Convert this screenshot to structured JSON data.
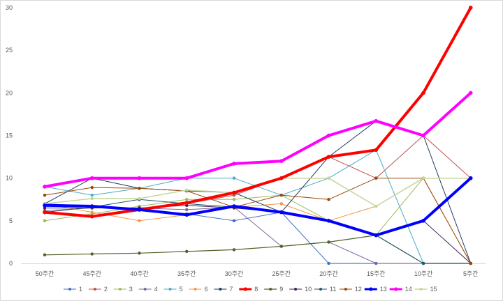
{
  "chart_data": {
    "type": "line",
    "title": "",
    "xlabel": "",
    "ylabel": "",
    "ylim": [
      0,
      30
    ],
    "yticks": [
      0,
      5,
      10,
      15,
      20,
      25,
      30
    ],
    "grid": false,
    "legend": "bottom",
    "categories": [
      "50주간",
      "45주간",
      "40주간",
      "35주간",
      "30주간",
      "25주간",
      "20주간",
      "15주간",
      "10주간",
      "5주간"
    ],
    "series": [
      {
        "name": "1",
        "color": "#4472c4",
        "width": 1,
        "values": [
          7,
          6.7,
          6.3,
          5.8,
          5,
          6,
          0,
          0,
          0,
          0
        ]
      },
      {
        "name": "2",
        "color": "#c0504d",
        "width": 1,
        "values": [
          6,
          5.5,
          6.3,
          7,
          8,
          10,
          12.5,
          10,
          15,
          10
        ]
      },
      {
        "name": "3",
        "color": "#9bbb59",
        "width": 1,
        "values": [
          5,
          5.8,
          6.7,
          7.5,
          7.5,
          8,
          5,
          3.3,
          10,
          10
        ]
      },
      {
        "name": "4",
        "color": "#8064a2",
        "width": 1,
        "values": [
          6.2,
          6.5,
          6.5,
          6.3,
          6.6,
          2,
          2.5,
          0,
          0,
          0
        ]
      },
      {
        "name": "5",
        "color": "#4bacc6",
        "width": 1,
        "values": [
          9,
          8,
          8.8,
          10,
          10,
          8,
          10,
          13.3,
          0,
          0
        ]
      },
      {
        "name": "6",
        "color": "#f79646",
        "width": 1,
        "values": [
          7,
          6,
          5,
          5.7,
          6.6,
          7,
          5,
          6.7,
          10,
          0
        ]
      },
      {
        "name": "7",
        "color": "#1f3864",
        "width": 1,
        "values": [
          7,
          10,
          8.8,
          8.5,
          8.3,
          6,
          12.5,
          16.7,
          15,
          0
        ]
      },
      {
        "name": "8",
        "color": "#ff0000",
        "width": 4,
        "values": [
          6,
          5.5,
          6.3,
          7.1,
          8.3,
          10,
          12.5,
          13.3,
          20,
          30
        ]
      },
      {
        "name": "9",
        "color": "#4f6228",
        "width": 1.2,
        "values": [
          1,
          1.1,
          1.2,
          1.4,
          1.6,
          2,
          2.5,
          3.3,
          0,
          0
        ]
      },
      {
        "name": "10",
        "color": "#3f1f54",
        "width": 1,
        "values": [
          6.5,
          6.5,
          6.5,
          6.8,
          6.5,
          6,
          5,
          3.3,
          5,
          0
        ]
      },
      {
        "name": "11",
        "color": "#215968",
        "width": 1,
        "values": [
          6,
          6.6,
          7.5,
          7,
          6.6,
          6,
          5,
          3.3,
          0,
          0
        ]
      },
      {
        "name": "12",
        "color": "#984807",
        "width": 1,
        "values": [
          8,
          8.9,
          8.8,
          8.5,
          6.6,
          8,
          7.5,
          10,
          10,
          0
        ]
      },
      {
        "name": "13",
        "color": "#0000ff",
        "width": 4,
        "values": [
          6.8,
          6.7,
          6.3,
          5.7,
          6.7,
          6,
          5,
          3.3,
          5,
          10
        ]
      },
      {
        "name": "14",
        "color": "#ff00ff",
        "width": 4,
        "values": [
          9,
          10,
          10,
          10,
          11.7,
          12,
          15,
          16.7,
          15,
          20
        ]
      },
      {
        "name": "15",
        "color": "#c4d79b",
        "width": 1.5,
        "values": [
          7,
          7.6,
          7.6,
          8.6,
          8.3,
          10,
          10,
          6.7,
          10,
          10
        ]
      }
    ]
  }
}
